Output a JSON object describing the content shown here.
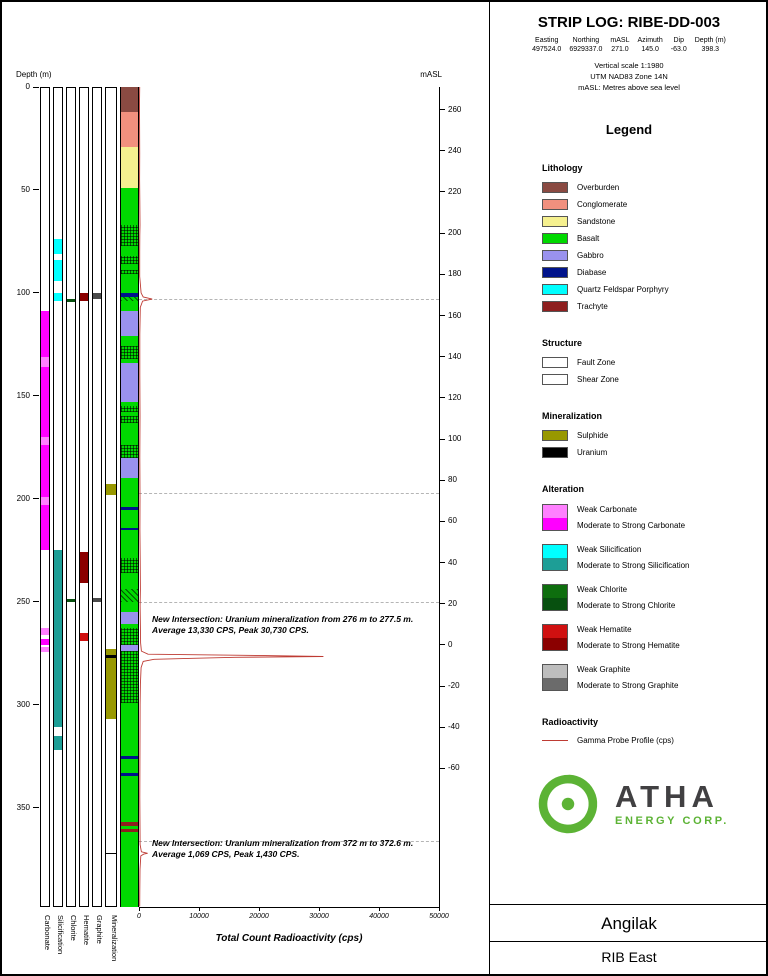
{
  "header": {
    "title": "STRIP LOG: RIBE-DD-003",
    "info_columns": [
      "Easting",
      "Northing",
      "mASL",
      "Azimuth",
      "Dip",
      "Depth (m)"
    ],
    "info_values": [
      "497524.0",
      "6929337.0",
      "271.0",
      "145.0",
      "-63.0",
      "398.3"
    ],
    "notes": [
      "Vertical scale 1:1980",
      "UTM NAD83 Zone 14N",
      "mASL: Metres above sea level"
    ]
  },
  "legend": {
    "title": "Legend",
    "lithology": {
      "title": "Lithology",
      "items": [
        {
          "label": "Overburden",
          "color": "#8A4A42"
        },
        {
          "label": "Conglomerate",
          "color": "#F1907E"
        },
        {
          "label": "Sandstone",
          "color": "#F5F08F"
        },
        {
          "label": "Basalt",
          "color": "#00D900"
        },
        {
          "label": "Gabbro",
          "color": "#9A92EE"
        },
        {
          "label": "Diabase",
          "color": "#00138B"
        },
        {
          "label": "Quartz Feldspar Porphyry",
          "color": "#00FFFF"
        },
        {
          "label": "Trachyte",
          "color": "#8E1F1F"
        }
      ]
    },
    "structure": {
      "title": "Structure",
      "items": [
        {
          "label": "Fault Zone",
          "pattern": "fault"
        },
        {
          "label": "Shear Zone",
          "pattern": "shear"
        }
      ]
    },
    "mineralization": {
      "title": "Mineralization",
      "items": [
        {
          "label": "Sulphide",
          "color": "#989800"
        },
        {
          "label": "Uranium",
          "color": "#000000"
        }
      ]
    },
    "alteration": {
      "title": "Alteration",
      "items": [
        {
          "weak": "Weak Carbonate",
          "strong": "Moderate to Strong Carbonate",
          "weak_color": "#FF80FF",
          "strong_color": "#FF00FF"
        },
        {
          "weak": "Weak Silicification",
          "strong": "Moderate to Strong Silicification",
          "weak_color": "#00FFFF",
          "strong_color": "#1D9E96"
        },
        {
          "weak": "Weak Chlorite",
          "strong": "Moderate to Strong Chlorite",
          "weak_color": "#0E6E0E",
          "strong_color": "#07500F"
        },
        {
          "weak": "Weak Hematite",
          "strong": "Moderate to Strong Hematite",
          "weak_color": "#D01010",
          "strong_color": "#8B0000"
        },
        {
          "weak": "Weak Graphite",
          "strong": "Moderate to Strong Graphite",
          "weak_color": "#BDBDBD",
          "strong_color": "#6B6B6B"
        }
      ]
    },
    "radioactivity": {
      "title": "Radioactivity",
      "items": [
        {
          "label": "Gamma Probe Profile (cps)",
          "color": "#BE3B33",
          "line": true
        }
      ]
    }
  },
  "logo": {
    "name": "ATHA",
    "subtitle": "ENERGY CORP.",
    "green": "#5CB335",
    "dark": "#414042"
  },
  "footer": {
    "line1": "Angilak",
    "line2": "RIB East"
  },
  "chart_data": {
    "type": "strip-log",
    "title": "STRIP LOG: RIBE-DD-003",
    "depth_axis": {
      "label": "Depth (m)",
      "min": 0,
      "max": 398.3,
      "ticks": [
        0,
        50,
        100,
        150,
        200,
        250,
        300,
        350
      ]
    },
    "masl_axis": {
      "label": "mASL",
      "surface": 271.0,
      "ticks": [
        260,
        240,
        220,
        200,
        180,
        160,
        140,
        120,
        100,
        80,
        60,
        40,
        20,
        0,
        -20,
        -40,
        -60
      ]
    },
    "radio_axis": {
      "label": "Total Count Radioactivity (cps)",
      "min": 0,
      "max": 50000,
      "ticks": [
        0,
        10000,
        20000,
        30000,
        40000,
        50000
      ]
    },
    "styles": {
      "carbonate_weak": "#FF80FF",
      "carbonate_strong": "#FF00FF",
      "silicification_weak": "#00FFFF",
      "silicification_strong": "#1D9E96",
      "chlorite_weak": "#0E6E0E",
      "chlorite_strong": "#07500F",
      "hematite_weak": "#D01010",
      "hematite_strong": "#8B0000",
      "graphite_weak": "#BDBDBD",
      "graphite_strong": "#4A4A4A",
      "sulphide": "#989800",
      "uranium": "#000000"
    },
    "columns": [
      {
        "name": "Carbonate",
        "intervals": [
          [
            109,
            131,
            "carbonate_strong"
          ],
          [
            131,
            136,
            "carbonate_weak"
          ],
          [
            136,
            170,
            "carbonate_strong"
          ],
          [
            170,
            174,
            "carbonate_weak"
          ],
          [
            174,
            199,
            "carbonate_strong"
          ],
          [
            199,
            203,
            "carbonate_weak"
          ],
          [
            203,
            225,
            "carbonate_strong"
          ],
          [
            263,
            266,
            "carbonate_weak"
          ],
          [
            268,
            271,
            "carbonate_strong"
          ],
          [
            272,
            274.5,
            "carbonate_weak"
          ]
        ]
      },
      {
        "name": "Silicification",
        "intervals": [
          [
            74,
            81,
            "silicification_weak"
          ],
          [
            84,
            94,
            "silicification_weak"
          ],
          [
            100,
            104,
            "silicification_weak"
          ],
          [
            225,
            311,
            "silicification_strong"
          ],
          [
            315,
            322,
            "silicification_strong"
          ]
        ]
      },
      {
        "name": "Chlorite",
        "intervals": [
          [
            103,
            104.5,
            "chlorite_strong"
          ],
          [
            248.5,
            250,
            "chlorite_strong"
          ]
        ]
      },
      {
        "name": "Hematite",
        "intervals": [
          [
            100,
            104,
            "hematite_strong"
          ],
          [
            226,
            241,
            "hematite_strong"
          ],
          [
            265,
            269,
            "hematite_weak"
          ]
        ]
      },
      {
        "name": "Graphite",
        "intervals": [
          [
            100,
            103,
            "graphite_strong"
          ],
          [
            248,
            250,
            "graphite_strong"
          ]
        ]
      },
      {
        "name": "Mineralization",
        "intervals": [
          [
            193,
            198,
            "sulphide"
          ],
          [
            273,
            307,
            "sulphide"
          ],
          [
            276,
            277.5,
            "uranium"
          ],
          [
            372,
            372.6,
            "uranium"
          ]
        ]
      }
    ],
    "lithology": {
      "name": "Lithology",
      "intervals": [
        [
          0,
          12,
          "Overburden"
        ],
        [
          12,
          29,
          "Conglomerate"
        ],
        [
          29,
          49,
          "Sandstone"
        ],
        [
          49,
          67,
          "Basalt"
        ],
        [
          67,
          77,
          "Basalt",
          "fault"
        ],
        [
          77,
          82,
          "Basalt"
        ],
        [
          82,
          86,
          "Basalt",
          "fault"
        ],
        [
          86,
          89,
          "Basalt"
        ],
        [
          89,
          91,
          "Basalt",
          "fault"
        ],
        [
          91,
          100,
          "Basalt"
        ],
        [
          100,
          102,
          "Diabase"
        ],
        [
          102,
          104,
          "Basalt",
          "shear"
        ],
        [
          104,
          109,
          "Basalt"
        ],
        [
          109,
          121,
          "Gabbro"
        ],
        [
          121,
          126,
          "Basalt"
        ],
        [
          126,
          132,
          "Basalt",
          "fault"
        ],
        [
          132,
          134,
          "Basalt"
        ],
        [
          134,
          153,
          "Gabbro"
        ],
        [
          153,
          155,
          "Basalt"
        ],
        [
          155,
          158,
          "Basalt",
          "fault"
        ],
        [
          158,
          160,
          "Basalt"
        ],
        [
          160,
          163,
          "Basalt",
          "fault"
        ],
        [
          163,
          174,
          "Basalt"
        ],
        [
          174,
          180,
          "Basalt",
          "fault"
        ],
        [
          180,
          190,
          "Gabbro"
        ],
        [
          190,
          204,
          "Basalt"
        ],
        [
          204,
          205.5,
          "Diabase"
        ],
        [
          205.5,
          214,
          "Basalt"
        ],
        [
          214,
          215,
          "Diabase"
        ],
        [
          215,
          229,
          "Basalt"
        ],
        [
          229,
          236,
          "Basalt",
          "fault"
        ],
        [
          236,
          244,
          "Basalt"
        ],
        [
          244,
          250,
          "Basalt",
          "shear"
        ],
        [
          250,
          255,
          "Basalt"
        ],
        [
          255,
          261,
          "Gabbro"
        ],
        [
          261,
          263,
          "Basalt"
        ],
        [
          263,
          271,
          "Basalt",
          "fault"
        ],
        [
          271,
          274,
          "Gabbro"
        ],
        [
          274,
          299,
          "Basalt",
          "fault"
        ],
        [
          299,
          325,
          "Basalt"
        ],
        [
          325,
          326.5,
          "Diabase"
        ],
        [
          326.5,
          333,
          "Basalt"
        ],
        [
          333,
          334.5,
          "Diabase"
        ],
        [
          334.5,
          357,
          "Basalt"
        ],
        [
          357,
          359,
          "Trachyte"
        ],
        [
          359,
          360.5,
          "Basalt"
        ],
        [
          360.5,
          362,
          "Trachyte"
        ],
        [
          362,
          398.3,
          "Basalt"
        ]
      ]
    },
    "gamma_profile": [
      [
        0,
        120
      ],
      [
        8,
        90
      ],
      [
        20,
        100
      ],
      [
        32,
        110
      ],
      [
        45,
        95
      ],
      [
        55,
        130
      ],
      [
        67,
        170
      ],
      [
        72,
        140
      ],
      [
        80,
        120
      ],
      [
        92,
        110
      ],
      [
        100,
        350
      ],
      [
        102,
        700
      ],
      [
        103,
        2200
      ],
      [
        104,
        600
      ],
      [
        107,
        220
      ],
      [
        120,
        140
      ],
      [
        140,
        130
      ],
      [
        160,
        160
      ],
      [
        180,
        140
      ],
      [
        200,
        170
      ],
      [
        215,
        150
      ],
      [
        230,
        200
      ],
      [
        244,
        240
      ],
      [
        252,
        190
      ],
      [
        262,
        230
      ],
      [
        270,
        260
      ],
      [
        274,
        400
      ],
      [
        275.5,
        1500
      ],
      [
        276.2,
        21000
      ],
      [
        276.6,
        30730
      ],
      [
        277,
        16000
      ],
      [
        277.5,
        9000
      ],
      [
        278,
        2500
      ],
      [
        279,
        700
      ],
      [
        282,
        350
      ],
      [
        290,
        240
      ],
      [
        300,
        190
      ],
      [
        315,
        160
      ],
      [
        330,
        150
      ],
      [
        345,
        140
      ],
      [
        360,
        160
      ],
      [
        368,
        180
      ],
      [
        371.5,
        400
      ],
      [
        372.2,
        1430
      ],
      [
        372.6,
        800
      ],
      [
        373.5,
        300
      ],
      [
        380,
        160
      ],
      [
        390,
        130
      ],
      [
        398,
        110
      ]
    ],
    "gridline_depths": [
      103,
      197,
      250,
      366
    ],
    "annotations": [
      {
        "from_m": 276,
        "to_m": 277.5,
        "avg_cps": 13330,
        "peak_cps": 30730,
        "text_depth": 256,
        "text": "New Intersection: Uranium mineralization from 276 m to 277.5 m. Average 13,330 CPS, Peak 30,730 CPS."
      },
      {
        "from_m": 372,
        "to_m": 372.6,
        "avg_cps": 1069,
        "peak_cps": 1430,
        "text_depth": 365,
        "text": "New Intersection: Uranium mineralization from 372 m to 372.6 m. Average 1,069 CPS, Peak 1,430 CPS."
      }
    ]
  }
}
